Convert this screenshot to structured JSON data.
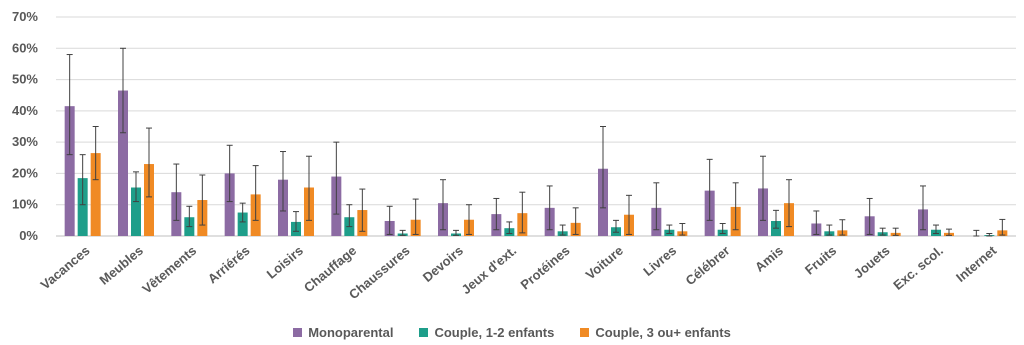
{
  "chart_data": {
    "type": "bar",
    "categories": [
      "Vacances",
      "Meubles",
      "Vêtements",
      "Arriérés",
      "Loisirs",
      "Chauffage",
      "Chaussures",
      "Devoirs",
      "Jeux d'ext.",
      "Protéines",
      "Voiture",
      "Livres",
      "Célébrer",
      "Amis",
      "Fruits",
      "Jouets",
      "Exc. scol.",
      "Internet"
    ],
    "y_ticks": [
      "0%",
      "10%",
      "20%",
      "30%",
      "40%",
      "50%",
      "60%",
      "70%"
    ],
    "ylim": [
      0,
      70
    ],
    "grid": true,
    "legend_position": "bottom",
    "series": [
      {
        "name": "Monoparental",
        "color": "#8C6BA3",
        "values": [
          41.5,
          46.5,
          14,
          20,
          18,
          19,
          4.8,
          10.5,
          7,
          9,
          21.5,
          9,
          14.5,
          15.2,
          4,
          6.3,
          8.5,
          0
        ],
        "err_low": [
          26,
          33,
          5,
          11,
          8,
          7,
          0.5,
          2,
          2,
          2,
          9,
          2,
          5,
          5,
          0.5,
          0.5,
          2,
          0
        ],
        "err_high": [
          58,
          60,
          23,
          29,
          27,
          30,
          9.5,
          18,
          12,
          16,
          35,
          17,
          24.5,
          25.5,
          8,
          12,
          16,
          1.8
        ]
      },
      {
        "name": "Couple, 1-2 enfants",
        "color": "#1E9E8A",
        "values": [
          18.5,
          15.5,
          6,
          7.5,
          4.5,
          6,
          0.8,
          0.8,
          2.5,
          1.5,
          2.8,
          2,
          2,
          4.8,
          1.5,
          1.2,
          2,
          0.3
        ],
        "err_low": [
          10,
          11,
          3,
          4.5,
          1.5,
          3,
          0.2,
          0.2,
          0.8,
          0.3,
          1.2,
          0.8,
          0.8,
          2.5,
          0.3,
          0.3,
          0.8,
          0
        ],
        "err_high": [
          26,
          20.5,
          9.5,
          10.5,
          7.8,
          10,
          1.8,
          1.8,
          4.5,
          3.5,
          5,
          3.5,
          4,
          8.2,
          3.5,
          2.5,
          3.5,
          0.8
        ]
      },
      {
        "name": "Couple, 3 ou+ enfants",
        "color": "#F08A24",
        "values": [
          26.5,
          23,
          11.5,
          13.3,
          15.5,
          8.3,
          5.2,
          5.2,
          7.3,
          4.2,
          6.8,
          1.5,
          9.3,
          10.5,
          1.8,
          1,
          1,
          1.8
        ],
        "err_low": [
          18,
          12.5,
          3.5,
          5,
          5,
          1.5,
          0.5,
          0.5,
          1,
          0.5,
          0.5,
          0.3,
          2,
          3,
          0.3,
          0.2,
          0.2,
          0.3
        ],
        "err_high": [
          35,
          34.5,
          19.5,
          22.5,
          25.5,
          15,
          11.8,
          10,
          14,
          9,
          13,
          4,
          17,
          18,
          5.2,
          2.5,
          2.2,
          5.3
        ]
      }
    ]
  }
}
